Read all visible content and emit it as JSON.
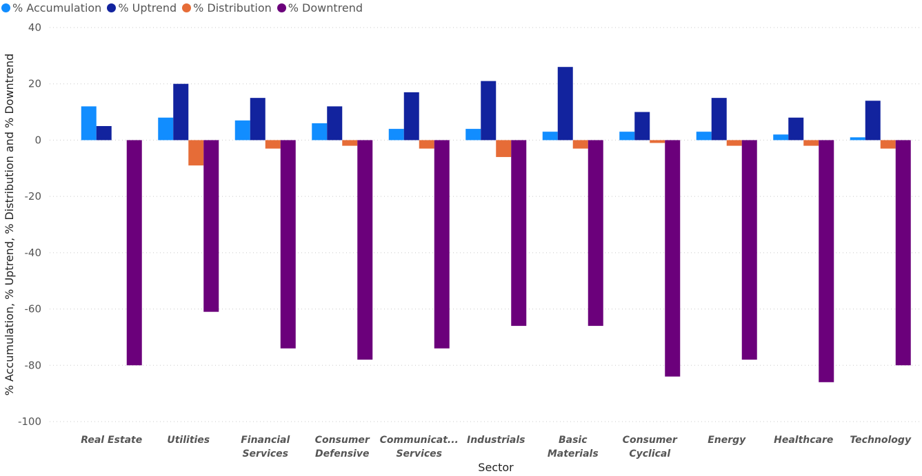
{
  "chart_data": {
    "type": "bar",
    "xlabel": "Sector",
    "ylabel": "% Accumulation, % Uptrend, % Distribution and % Downtrend",
    "ylim": [
      -100,
      40
    ],
    "yticks": [
      40,
      20,
      0,
      -20,
      -40,
      -60,
      -80,
      -100
    ],
    "grid": true,
    "legend_position": "top-left",
    "categories": [
      [
        "Real Estate"
      ],
      [
        "Utilities"
      ],
      [
        "Financial",
        "Services"
      ],
      [
        "Consumer",
        "Defensive"
      ],
      [
        "Communicat...",
        "Services"
      ],
      [
        "Industrials"
      ],
      [
        "Basic",
        "Materials"
      ],
      [
        "Consumer",
        "Cyclical"
      ],
      [
        "Energy"
      ],
      [
        "Healthcare"
      ],
      [
        "Technology"
      ]
    ],
    "series": [
      {
        "name": "% Accumulation",
        "color": "#118DFF",
        "values": [
          12,
          8,
          7,
          6,
          4,
          4,
          3,
          3,
          3,
          2,
          1
        ]
      },
      {
        "name": "% Uptrend",
        "color": "#12239E",
        "values": [
          5,
          20,
          15,
          12,
          17,
          21,
          26,
          10,
          15,
          8,
          14
        ]
      },
      {
        "name": "% Distribution",
        "color": "#E66C37",
        "values": [
          0,
          -9,
          -3,
          -2,
          -3,
          -6,
          -3,
          -1,
          -2,
          -2,
          -3
        ]
      },
      {
        "name": "% Downtrend",
        "color": "#6B007B",
        "values": [
          -80,
          -61,
          -74,
          -78,
          -74,
          -66,
          -66,
          -84,
          -78,
          -86,
          -80
        ]
      }
    ]
  }
}
